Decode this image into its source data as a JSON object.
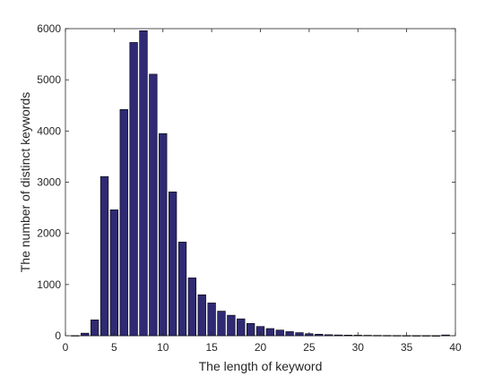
{
  "chart_data": {
    "type": "bar",
    "xlabel": "The length of keyword",
    "ylabel": "The number of distinct keywords",
    "xlim": [
      0,
      40
    ],
    "ylim": [
      0,
      6000
    ],
    "xticks": [
      0,
      5,
      10,
      15,
      20,
      25,
      30,
      35,
      40
    ],
    "yticks": [
      0,
      1000,
      2000,
      3000,
      4000,
      5000,
      6000
    ],
    "grid": false,
    "bar_color": "#2f2a73",
    "x": [
      1,
      2,
      3,
      4,
      5,
      6,
      7,
      8,
      9,
      10,
      11,
      12,
      13,
      14,
      15,
      16,
      17,
      18,
      19,
      20,
      21,
      22,
      23,
      24,
      25,
      26,
      27,
      28,
      29,
      30,
      31,
      32,
      33,
      34,
      35,
      36,
      37,
      38,
      39
    ],
    "values": [
      3,
      50,
      310,
      3110,
      2460,
      4420,
      5730,
      5960,
      5110,
      3950,
      2810,
      1830,
      1130,
      800,
      640,
      480,
      400,
      330,
      240,
      180,
      140,
      110,
      80,
      60,
      40,
      30,
      20,
      15,
      12,
      10,
      8,
      6,
      5,
      4,
      3,
      2,
      2,
      1,
      15
    ]
  }
}
